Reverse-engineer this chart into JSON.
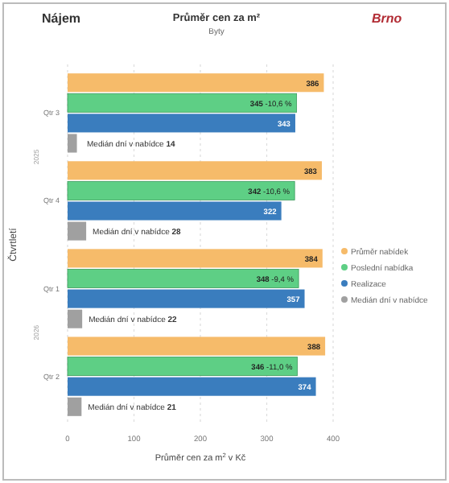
{
  "chart_data": {
    "type": "bar",
    "orientation": "horizontal",
    "title": "Průměr cen za m²",
    "subtitle": "Byty",
    "xlabel": "Průměr cen za m$^{2}$ v Kč",
    "ylabel": "Čtvrtletí",
    "annotations": [
      "Nájem",
      "Brno",
      "2025",
      "2026"
    ],
    "categories": [
      "Qtr 3",
      "Qtr 4",
      "Qtr 1",
      "Qtr 2"
    ],
    "series": [
      {
        "name": "Průměr nabídek",
        "color": "#f6bb6a",
        "values": [
          386,
          383,
          384,
          388
        ],
        "value_labels": [
          "386",
          "383",
          "384",
          "388"
        ]
      },
      {
        "name": "Poslední nabídka",
        "color": "#5ecf85",
        "values": [
          345,
          342,
          348,
          346
        ],
        "value_labels": [
          "345 -10,6 %",
          "342 -10,6 %",
          "348 -9,4 %",
          "346 -11,0 %"
        ]
      },
      {
        "name": "Realizace",
        "color": "#3a7dbe",
        "values": [
          343,
          322,
          357,
          374
        ],
        "value_labels": [
          "343",
          "322",
          "357",
          "374"
        ]
      },
      {
        "name": "Medián dní v nabídce",
        "color": "#a0a0a0",
        "values": [
          14,
          28,
          22,
          21
        ],
        "value_labels": [
          "Medián dní v nabídce 14",
          "Medián dní v nabídce 28",
          "Medián dní v nabídce 22",
          "Medián dní v nabídce 21"
        ]
      }
    ],
    "xlim": [
      0,
      400
    ],
    "xticks": [
      0,
      100,
      200,
      300,
      400
    ],
    "grid": "x",
    "legend": "right"
  }
}
